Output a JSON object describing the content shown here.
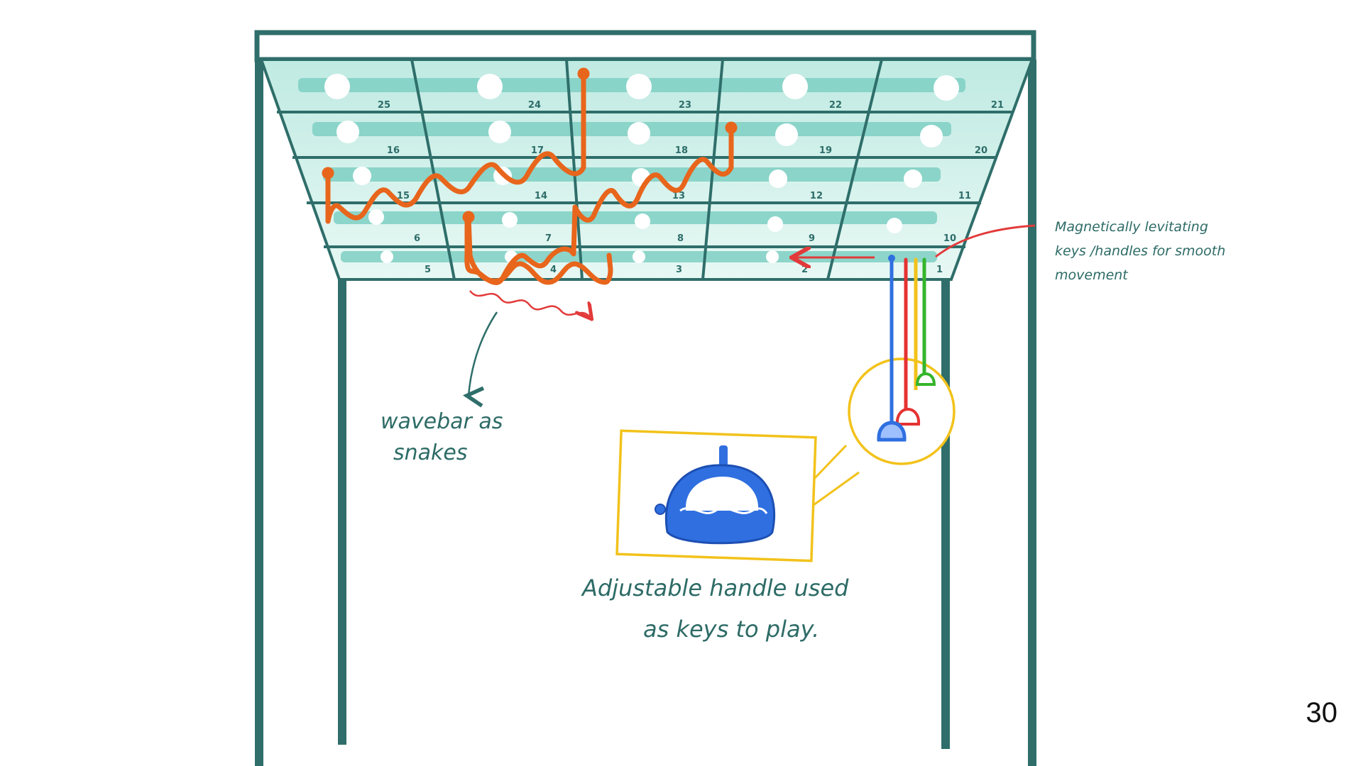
{
  "slide": {
    "page_number": "30"
  },
  "board": {
    "cell_numbers": [
      [
        "25",
        "24",
        "23",
        "22",
        "21"
      ],
      [
        "16",
        "17",
        "18",
        "19",
        "20"
      ],
      [
        "15",
        "14",
        "13",
        "12",
        "11"
      ],
      [
        "6",
        "7",
        "8",
        "9",
        "10"
      ],
      [
        "5",
        "4",
        "3",
        "2",
        "1"
      ]
    ]
  },
  "annotations": {
    "wavebar_lines": [
      "wavebar as",
      "snakes"
    ],
    "handle_lines": [
      "Adjustable handle used",
      "as keys to play."
    ],
    "levitating_lines": [
      "Magnetically levitating",
      "keys /handles for smooth",
      "movement"
    ]
  },
  "colors": {
    "frame": "#2f6e6a",
    "panel": "#9ddcd2",
    "panel_stripe": "#6fc5b9",
    "snake": "#e8651c",
    "arrow_red": "#e23a3a",
    "callout_ring": "#f2c21b",
    "handle_blue": "#2f6fe0",
    "handle_red": "#e53232",
    "handle_yellow": "#f2c21b",
    "handle_green": "#35b52b"
  }
}
